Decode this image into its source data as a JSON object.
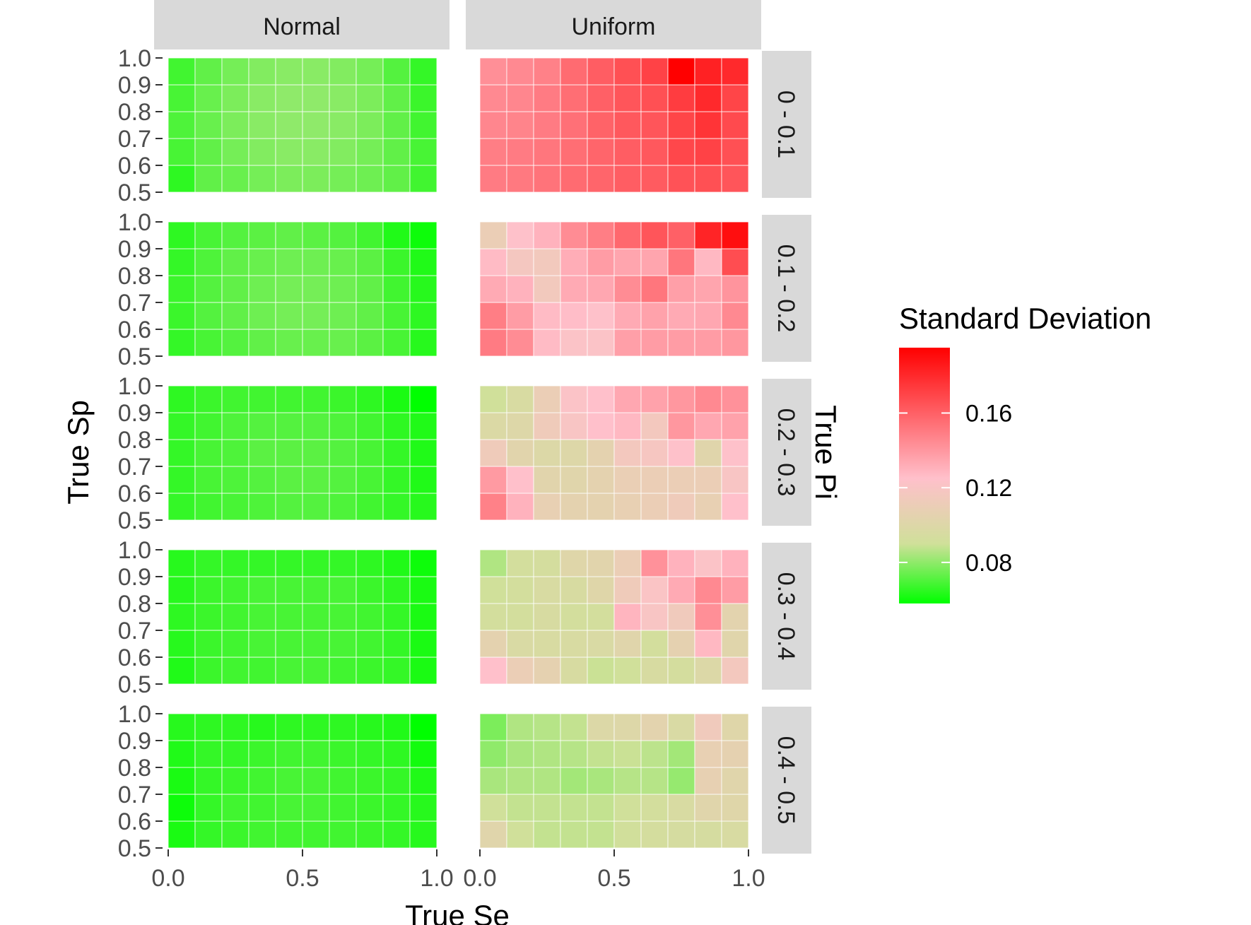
{
  "chart_data": {
    "type": "heatmap",
    "xlabel": "True Se",
    "ylabel": "True Sp",
    "facet_col_label": "True Pi",
    "columns": [
      "Normal",
      "Uniform"
    ],
    "rows": [
      "0 - 0.1",
      "0.1 - 0.2",
      "0.2 - 0.3",
      "0.3 - 0.4",
      "0.4 - 0.5"
    ],
    "x_categories": [
      0.0,
      0.1,
      0.2,
      0.3,
      0.4,
      0.5,
      0.6,
      0.7,
      0.8,
      0.9,
      1.0
    ],
    "y_categories": [
      0.5,
      0.6,
      0.7,
      0.8,
      0.9,
      1.0
    ],
    "x_ticks": [
      "0.0",
      "0.5",
      "1.0"
    ],
    "y_ticks": [
      "0.5",
      "0.6",
      "0.7",
      "0.8",
      "0.9",
      "1.0"
    ],
    "legend": {
      "title": "Standard Deviation",
      "ticks": [
        "0.16",
        "0.12",
        "0.08"
      ],
      "tick_values": [
        0.16,
        0.12,
        0.08
      ],
      "range": [
        0.058,
        0.195
      ],
      "colors": {
        "low": "#00ff00",
        "mid_low": "#d0e09a",
        "mid": "#ffc0cb",
        "high": "#ff0000"
      },
      "color_stops": [
        0.058,
        0.09,
        0.125,
        0.195
      ]
    },
    "grid": false,
    "legend_position": "right",
    "panels": [
      {
        "column": "Normal",
        "row": "0 - 0.1",
        "values": [
          [
            0.065,
            0.073,
            0.074,
            0.076,
            0.077,
            0.077,
            0.076,
            0.075,
            0.073,
            0.068
          ],
          [
            0.069,
            0.073,
            0.076,
            0.078,
            0.079,
            0.079,
            0.078,
            0.076,
            0.073,
            0.069
          ],
          [
            0.07,
            0.074,
            0.077,
            0.079,
            0.08,
            0.08,
            0.079,
            0.077,
            0.073,
            0.068
          ],
          [
            0.069,
            0.074,
            0.077,
            0.079,
            0.08,
            0.08,
            0.079,
            0.077,
            0.073,
            0.067
          ],
          [
            0.068,
            0.073,
            0.076,
            0.078,
            0.079,
            0.079,
            0.078,
            0.076,
            0.071,
            0.066
          ]
        ]
      },
      {
        "column": "Normal",
        "row": "0.1 - 0.2",
        "values": [
          [
            0.066,
            0.069,
            0.071,
            0.073,
            0.074,
            0.074,
            0.074,
            0.072,
            0.069,
            0.064
          ],
          [
            0.067,
            0.071,
            0.073,
            0.075,
            0.076,
            0.076,
            0.075,
            0.073,
            0.069,
            0.065
          ],
          [
            0.067,
            0.071,
            0.073,
            0.075,
            0.076,
            0.076,
            0.075,
            0.073,
            0.068,
            0.064
          ],
          [
            0.066,
            0.07,
            0.073,
            0.074,
            0.075,
            0.075,
            0.074,
            0.072,
            0.067,
            0.063
          ],
          [
            0.065,
            0.069,
            0.071,
            0.072,
            0.073,
            0.072,
            0.071,
            0.068,
            0.063,
            0.06
          ]
        ]
      },
      {
        "column": "Normal",
        "row": "0.2 - 0.3",
        "values": [
          [
            0.066,
            0.068,
            0.069,
            0.07,
            0.071,
            0.071,
            0.07,
            0.068,
            0.066,
            0.064
          ],
          [
            0.066,
            0.069,
            0.07,
            0.071,
            0.072,
            0.072,
            0.071,
            0.069,
            0.066,
            0.063
          ],
          [
            0.066,
            0.069,
            0.07,
            0.072,
            0.072,
            0.072,
            0.071,
            0.069,
            0.066,
            0.063
          ],
          [
            0.066,
            0.068,
            0.07,
            0.071,
            0.071,
            0.071,
            0.07,
            0.068,
            0.065,
            0.063
          ],
          [
            0.065,
            0.067,
            0.068,
            0.068,
            0.068,
            0.068,
            0.067,
            0.065,
            0.062,
            0.058
          ]
        ]
      },
      {
        "column": "Normal",
        "row": "0.3 - 0.4",
        "values": [
          [
            0.063,
            0.067,
            0.068,
            0.068,
            0.069,
            0.069,
            0.068,
            0.067,
            0.066,
            0.062
          ],
          [
            0.064,
            0.067,
            0.068,
            0.069,
            0.069,
            0.069,
            0.069,
            0.068,
            0.066,
            0.062
          ],
          [
            0.065,
            0.067,
            0.068,
            0.069,
            0.069,
            0.069,
            0.069,
            0.068,
            0.066,
            0.062
          ],
          [
            0.064,
            0.067,
            0.068,
            0.069,
            0.069,
            0.069,
            0.069,
            0.067,
            0.065,
            0.062
          ],
          [
            0.064,
            0.066,
            0.066,
            0.066,
            0.066,
            0.066,
            0.066,
            0.065,
            0.063,
            0.06
          ]
        ]
      },
      {
        "column": "Normal",
        "row": "0.4 - 0.5",
        "values": [
          [
            0.062,
            0.066,
            0.067,
            0.068,
            0.068,
            0.068,
            0.068,
            0.067,
            0.066,
            0.064
          ],
          [
            0.06,
            0.066,
            0.068,
            0.068,
            0.069,
            0.069,
            0.068,
            0.067,
            0.066,
            0.064
          ],
          [
            0.062,
            0.066,
            0.067,
            0.068,
            0.069,
            0.069,
            0.068,
            0.067,
            0.066,
            0.063
          ],
          [
            0.063,
            0.066,
            0.066,
            0.067,
            0.068,
            0.068,
            0.067,
            0.066,
            0.065,
            0.061
          ],
          [
            0.064,
            0.065,
            0.065,
            0.064,
            0.065,
            0.065,
            0.065,
            0.064,
            0.063,
            0.058
          ]
        ]
      },
      {
        "column": "Uniform",
        "row": "0 - 0.1",
        "values": [
          [
            0.15,
            0.151,
            0.153,
            0.156,
            0.158,
            0.161,
            0.162,
            0.165,
            0.166,
            0.164
          ],
          [
            0.149,
            0.15,
            0.152,
            0.155,
            0.158,
            0.161,
            0.163,
            0.169,
            0.171,
            0.166
          ],
          [
            0.146,
            0.147,
            0.15,
            0.154,
            0.159,
            0.163,
            0.164,
            0.17,
            0.176,
            0.168
          ],
          [
            0.145,
            0.146,
            0.15,
            0.155,
            0.16,
            0.164,
            0.166,
            0.173,
            0.18,
            0.17
          ],
          [
            0.143,
            0.145,
            0.148,
            0.156,
            0.161,
            0.166,
            0.171,
            0.195,
            0.183,
            0.18
          ]
        ]
      },
      {
        "column": "Uniform",
        "row": "0.1 - 0.2",
        "values": [
          [
            0.15,
            0.144,
            0.127,
            0.122,
            0.122,
            0.137,
            0.138,
            0.138,
            0.138,
            0.14
          ],
          [
            0.149,
            0.138,
            0.127,
            0.126,
            0.124,
            0.133,
            0.136,
            0.133,
            0.134,
            0.145
          ],
          [
            0.133,
            0.13,
            0.115,
            0.133,
            0.134,
            0.144,
            0.152,
            0.137,
            0.135,
            0.141
          ],
          [
            0.127,
            0.117,
            0.115,
            0.132,
            0.138,
            0.135,
            0.135,
            0.152,
            0.128,
            0.167
          ],
          [
            0.11,
            0.124,
            0.13,
            0.144,
            0.149,
            0.157,
            0.164,
            0.16,
            0.182,
            0.19
          ]
        ]
      },
      {
        "column": "Uniform",
        "row": "0.2 - 0.3",
        "values": [
          [
            0.148,
            0.13,
            0.108,
            0.105,
            0.105,
            0.108,
            0.11,
            0.113,
            0.108,
            0.125
          ],
          [
            0.139,
            0.125,
            0.103,
            0.102,
            0.105,
            0.109,
            0.11,
            0.11,
            0.11,
            0.12
          ],
          [
            0.113,
            0.103,
            0.099,
            0.1,
            0.105,
            0.116,
            0.118,
            0.124,
            0.102,
            0.124
          ],
          [
            0.098,
            0.1,
            0.113,
            0.12,
            0.125,
            0.128,
            0.116,
            0.14,
            0.134,
            0.136
          ],
          [
            0.09,
            0.096,
            0.11,
            0.122,
            0.125,
            0.134,
            0.136,
            0.14,
            0.145,
            0.142
          ]
        ]
      },
      {
        "column": "Uniform",
        "row": "0.3 - 0.4",
        "values": [
          [
            0.125,
            0.11,
            0.106,
            0.095,
            0.089,
            0.09,
            0.095,
            0.093,
            0.099,
            0.116
          ],
          [
            0.105,
            0.097,
            0.096,
            0.096,
            0.097,
            0.102,
            0.092,
            0.106,
            0.128,
            0.102
          ],
          [
            0.092,
            0.092,
            0.095,
            0.092,
            0.092,
            0.129,
            0.12,
            0.114,
            0.143,
            0.104
          ],
          [
            0.09,
            0.092,
            0.096,
            0.095,
            0.101,
            0.113,
            0.121,
            0.133,
            0.145,
            0.138
          ],
          [
            0.085,
            0.092,
            0.093,
            0.101,
            0.103,
            0.11,
            0.142,
            0.13,
            0.122,
            0.13
          ]
        ]
      },
      {
        "column": "Uniform",
        "row": "0.4 - 0.5",
        "values": [
          [
            0.102,
            0.09,
            0.088,
            0.088,
            0.088,
            0.091,
            0.093,
            0.094,
            0.094,
            0.096
          ],
          [
            0.09,
            0.088,
            0.088,
            0.088,
            0.088,
            0.09,
            0.092,
            0.096,
            0.102,
            0.101
          ],
          [
            0.084,
            0.085,
            0.085,
            0.083,
            0.084,
            0.086,
            0.086,
            0.081,
            0.107,
            0.102
          ],
          [
            0.08,
            0.084,
            0.085,
            0.086,
            0.088,
            0.089,
            0.087,
            0.083,
            0.108,
            0.106
          ],
          [
            0.077,
            0.085,
            0.086,
            0.088,
            0.099,
            0.1,
            0.104,
            0.097,
            0.114,
            0.101
          ]
        ]
      }
    ]
  }
}
